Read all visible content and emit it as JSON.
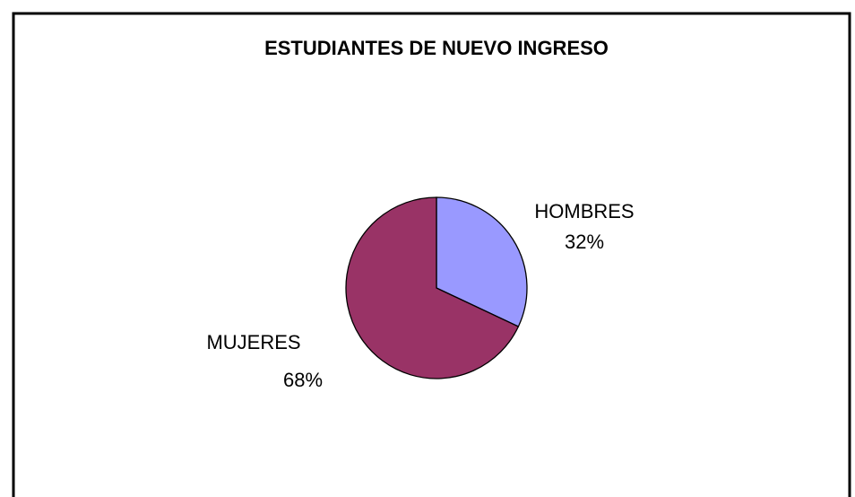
{
  "chart_data": {
    "type": "pie",
    "title": "ESTUDIANTES DE NUEVO INGRESO",
    "categories": [
      "HOMBRES",
      "MUJERES"
    ],
    "values": [
      32,
      68
    ],
    "value_labels": [
      "32%",
      "68%"
    ],
    "colors": [
      "#9999ff",
      "#993366"
    ]
  }
}
